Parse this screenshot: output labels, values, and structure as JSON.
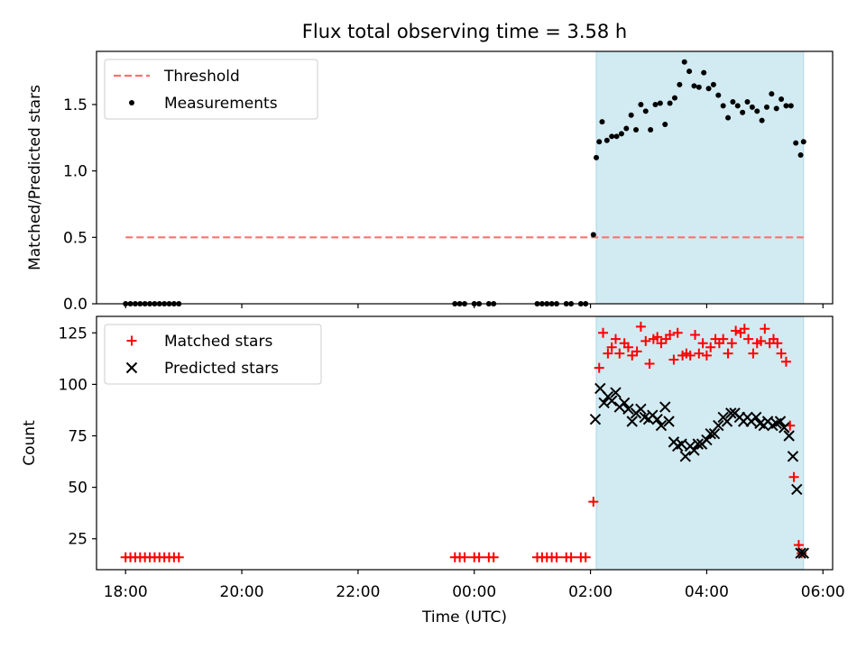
{
  "title": "Flux total observing time = 3.58 h",
  "colors": {
    "threshold": "#ff7070",
    "measurement": "#000000",
    "matched": "#ff0000",
    "predicted": "#000000",
    "shade": "#add8e6"
  },
  "chart_data": [
    {
      "type": "scatter",
      "ylabel": "Matched/Predicted stars",
      "ylim": [
        0,
        1.9
      ],
      "yticks": [
        "0.0",
        "0.5",
        "1.0",
        "1.5"
      ],
      "ytick_values": [
        0,
        0.5,
        1.0,
        1.5
      ],
      "xlim": [
        "17:30",
        "06:10"
      ],
      "shaded_span": [
        "02:06",
        "05:40"
      ],
      "legend": {
        "position": "upper-left",
        "entries": [
          "Threshold",
          "Measurements"
        ]
      },
      "threshold": {
        "name": "Threshold",
        "value": 0.5,
        "x_range": [
          "18:00",
          "05:40"
        ]
      },
      "series": [
        {
          "name": "Measurements",
          "marker": "dot",
          "x": [
            "18:00",
            "18:05",
            "18:10",
            "18:15",
            "18:20",
            "18:25",
            "18:30",
            "18:35",
            "18:40",
            "18:45",
            "18:50",
            "18:55",
            "23:40",
            "23:45",
            "23:50",
            "00:00",
            "00:05",
            "00:15",
            "00:20",
            "01:05",
            "01:10",
            "01:15",
            "01:20",
            "01:25",
            "01:35",
            "01:40",
            "01:50",
            "01:55",
            "02:03",
            "02:06",
            "02:09",
            "02:12",
            "02:17",
            "02:22",
            "02:27",
            "02:32",
            "02:37",
            "02:42",
            "02:47",
            "02:52",
            "02:57",
            "03:02",
            "03:07",
            "03:12",
            "03:17",
            "03:22",
            "03:27",
            "03:32",
            "03:37",
            "03:42",
            "03:47",
            "03:52",
            "03:57",
            "04:02",
            "04:07",
            "04:12",
            "04:17",
            "04:22",
            "04:27",
            "04:32",
            "04:37",
            "04:42",
            "04:47",
            "04:52",
            "04:57",
            "05:02",
            "05:07",
            "05:12",
            "05:17",
            "05:22",
            "05:27",
            "05:32",
            "05:37",
            "05:40"
          ],
          "y": [
            0,
            0,
            0,
            0,
            0,
            0,
            0,
            0,
            0,
            0,
            0,
            0,
            0,
            0,
            0,
            0,
            0,
            0,
            0,
            0,
            0,
            0,
            0,
            0,
            0,
            0,
            0,
            0,
            0.52,
            1.1,
            1.22,
            1.37,
            1.23,
            1.26,
            1.26,
            1.28,
            1.32,
            1.42,
            1.31,
            1.5,
            1.45,
            1.31,
            1.5,
            1.51,
            1.35,
            1.51,
            1.55,
            1.65,
            1.82,
            1.75,
            1.64,
            1.63,
            1.74,
            1.62,
            1.65,
            1.57,
            1.49,
            1.4,
            1.52,
            1.49,
            1.44,
            1.52,
            1.48,
            1.45,
            1.38,
            1.48,
            1.58,
            1.47,
            1.54,
            1.49,
            1.49,
            1.21,
            1.12,
            1.22
          ]
        }
      ]
    },
    {
      "type": "scatter",
      "xlabel": "Time (UTC)",
      "ylabel": "Count",
      "ylim": [
        10,
        133
      ],
      "yticks": [
        "25",
        "50",
        "75",
        "100",
        "125"
      ],
      "ytick_values": [
        25,
        50,
        75,
        100,
        125
      ],
      "xlim": [
        "17:30",
        "06:10"
      ],
      "xticks": [
        "18:00",
        "20:00",
        "22:00",
        "00:00",
        "02:00",
        "04:00",
        "06:00"
      ],
      "shaded_span": [
        "02:06",
        "05:40"
      ],
      "legend": {
        "position": "upper-left",
        "entries": [
          "Matched stars",
          "Predicted stars"
        ]
      },
      "series": [
        {
          "name": "Matched stars",
          "marker": "plus",
          "x": [
            "18:00",
            "18:05",
            "18:10",
            "18:15",
            "18:20",
            "18:25",
            "18:30",
            "18:35",
            "18:40",
            "18:45",
            "18:50",
            "18:55",
            "23:40",
            "23:45",
            "23:50",
            "00:00",
            "00:05",
            "00:15",
            "00:20",
            "01:05",
            "01:10",
            "01:15",
            "01:20",
            "01:25",
            "01:35",
            "01:40",
            "01:50",
            "01:55",
            "02:03",
            "02:09",
            "02:13",
            "02:18",
            "02:22",
            "02:26",
            "02:30",
            "02:35",
            "02:39",
            "02:43",
            "02:48",
            "02:52",
            "02:57",
            "03:01",
            "03:05",
            "03:09",
            "03:13",
            "03:18",
            "03:22",
            "03:26",
            "03:30",
            "03:35",
            "03:39",
            "03:43",
            "03:48",
            "03:52",
            "03:56",
            "04:00",
            "04:04",
            "04:09",
            "04:13",
            "04:17",
            "04:22",
            "04:26",
            "04:30",
            "04:35",
            "04:39",
            "04:43",
            "04:48",
            "04:52",
            "04:56",
            "05:00",
            "05:05",
            "05:09",
            "05:13",
            "05:17",
            "05:22",
            "05:26",
            "05:30",
            "05:35",
            "05:38"
          ],
          "y": [
            16,
            16,
            16,
            16,
            16,
            16,
            16,
            16,
            16,
            16,
            16,
            16,
            16,
            16,
            16,
            16,
            16,
            16,
            16,
            16,
            16,
            16,
            16,
            16,
            16,
            16,
            16,
            16,
            43,
            108,
            125,
            115,
            118,
            122,
            115,
            120,
            118,
            114,
            116,
            128,
            121,
            110,
            122,
            123,
            120,
            122,
            124,
            112,
            125,
            114,
            115,
            114,
            124,
            115,
            120,
            114,
            118,
            122,
            120,
            122,
            115,
            120,
            126,
            125,
            127,
            122,
            115,
            120,
            121,
            127,
            120,
            122,
            120,
            115,
            111,
            80,
            55,
            22,
            18
          ],
          "note": ""
        },
        {
          "name": "Predicted stars",
          "marker": "x",
          "x": [
            "02:05",
            "02:10",
            "02:14",
            "02:18",
            "02:22",
            "02:26",
            "02:30",
            "02:35",
            "02:39",
            "02:43",
            "02:47",
            "02:52",
            "02:56",
            "03:00",
            "03:04",
            "03:09",
            "03:13",
            "03:17",
            "03:21",
            "03:26",
            "03:30",
            "03:34",
            "03:38",
            "03:43",
            "03:47",
            "03:51",
            "03:55",
            "04:00",
            "04:04",
            "04:08",
            "04:12",
            "04:17",
            "04:21",
            "04:25",
            "04:29",
            "04:34",
            "04:38",
            "04:42",
            "04:46",
            "04:51",
            "04:55",
            "04:59",
            "05:03",
            "05:08",
            "05:12",
            "05:16",
            "05:20",
            "05:25",
            "05:29",
            "05:33",
            "05:37",
            "05:40"
          ],
          "y": [
            83,
            98,
            91,
            94,
            92,
            96,
            89,
            91,
            88,
            82,
            86,
            88,
            84,
            83,
            85,
            83,
            80,
            89,
            82,
            72,
            70,
            71,
            65,
            70,
            68,
            71,
            71,
            73,
            76,
            76,
            80,
            84,
            82,
            86,
            86,
            84,
            82,
            84,
            82,
            84,
            81,
            80,
            82,
            80,
            81,
            82,
            79,
            75,
            65,
            49,
            18,
            18
          ]
        }
      ]
    }
  ]
}
